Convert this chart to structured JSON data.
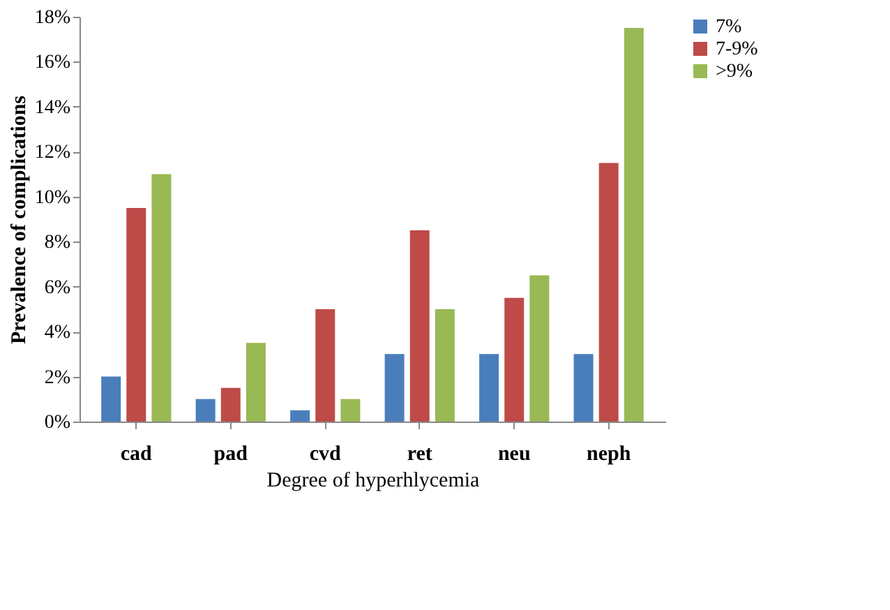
{
  "chart_data": {
    "type": "bar",
    "xlabel": "Degree of hyperhlycemia",
    "ylabel": "Prevalence of complications",
    "categories": [
      "cad",
      "pad",
      "cvd",
      "ret",
      "neu",
      "neph"
    ],
    "series": [
      {
        "name": "7%",
        "color": "#4a7ebb",
        "values": [
          2,
          1,
          0.5,
          3,
          3,
          3
        ]
      },
      {
        "name": "7-9%",
        "color": "#be4b48",
        "values": [
          9.5,
          1.5,
          5,
          8.5,
          5.5,
          11.5
        ]
      },
      {
        "name": ">9%",
        "color": "#98b954",
        "values": [
          11,
          3.5,
          1,
          5,
          6.5,
          17.5
        ]
      }
    ],
    "ylim": [
      0,
      18
    ],
    "yticks": [
      {
        "value": 0,
        "label": "0%"
      },
      {
        "value": 2,
        "label": "2%"
      },
      {
        "value": 4,
        "label": "4%"
      },
      {
        "value": 6,
        "label": "6%"
      },
      {
        "value": 8,
        "label": "8%"
      },
      {
        "value": 10,
        "label": "10%"
      },
      {
        "value": 12,
        "label": "12%"
      },
      {
        "value": 14,
        "label": "14%"
      },
      {
        "value": 16,
        "label": "16%"
      },
      {
        "value": 18,
        "label": "18%"
      }
    ],
    "grid": false,
    "legend": "right"
  }
}
